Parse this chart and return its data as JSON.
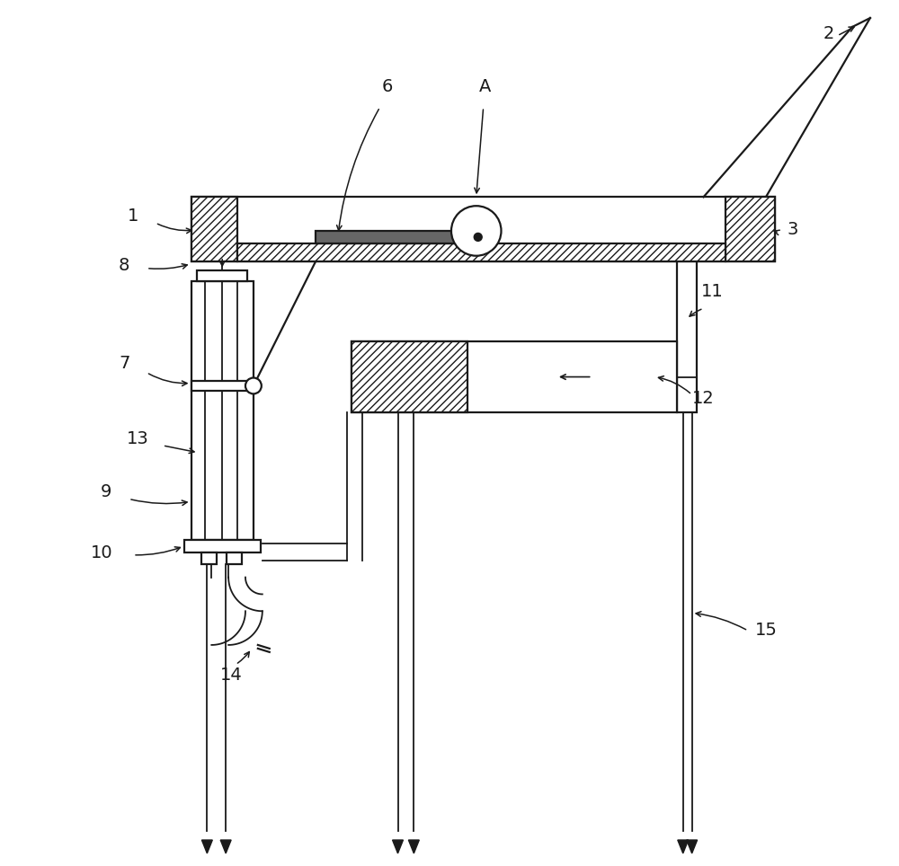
{
  "bg_color": "#ffffff",
  "line_color": "#1a1a1a",
  "lw": 1.6,
  "lw2": 1.3,
  "figsize": [
    10.0,
    9.64
  ],
  "xlim": [
    0,
    10
  ],
  "ylim": [
    0,
    9.64
  ]
}
